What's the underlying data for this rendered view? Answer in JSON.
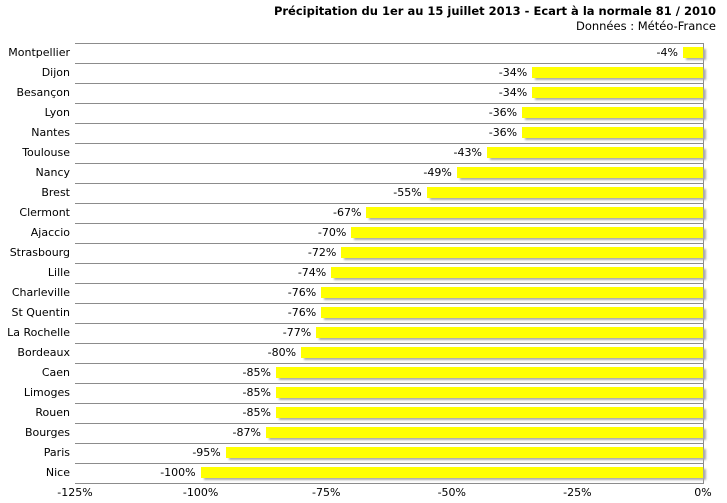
{
  "title": "Précipitation du 1er au 15 juillet 2013 - Ecart à la normale 81 / 2010",
  "subtitle": "Données : Météo-France",
  "colors": {
    "bar": "#FFFF00",
    "bar_shadow": "#ABABAB",
    "gridline": "#8C8C8C",
    "text": "#000000",
    "background": "#FFFFFF"
  },
  "chart_data": {
    "type": "bar",
    "orientation": "horizontal",
    "title": "Précipitation du 1er au 15 juillet 2013 - Ecart à la normale 81 / 2010",
    "subtitle": "Données : Météo-France",
    "categories": [
      "Montpellier",
      "Dijon",
      "Besançon",
      "Lyon",
      "Nantes",
      "Toulouse",
      "Nancy",
      "Brest",
      "Clermont",
      "Ajaccio",
      "Strasbourg",
      "Lille",
      "Charleville",
      "St Quentin",
      "La Rochelle",
      "Bordeaux",
      "Caen",
      "Limoges",
      "Rouen",
      "Bourges",
      "Paris",
      "Nice"
    ],
    "values": [
      -4,
      -34,
      -34,
      -36,
      -36,
      -43,
      -49,
      -55,
      -67,
      -70,
      -72,
      -74,
      -76,
      -76,
      -77,
      -80,
      -85,
      -85,
      -85,
      -87,
      -95,
      -100
    ],
    "data_labels": [
      "-4%",
      "-34%",
      "-34%",
      "-36%",
      "-36%",
      "-43%",
      "-49%",
      "-55%",
      "-67%",
      "-70%",
      "-72%",
      "-74%",
      "-76%",
      "-76%",
      "-77%",
      "-80%",
      "-85%",
      "-85%",
      "-85%",
      "-87%",
      "-95%",
      "-100%"
    ],
    "xlim": [
      -125,
      0
    ],
    "x_ticks": [
      {
        "value": -125,
        "label": "-125%"
      },
      {
        "value": -100,
        "label": "-100%"
      },
      {
        "value": -75,
        "label": "-75%"
      },
      {
        "value": -50,
        "label": "-50%"
      },
      {
        "value": -25,
        "label": "-25%"
      },
      {
        "value": 0,
        "label": "0%"
      }
    ],
    "xlabel": "",
    "ylabel": "",
    "legend": "none",
    "grid": "horizontal row separators only",
    "bar_color": "#FFFF00"
  }
}
